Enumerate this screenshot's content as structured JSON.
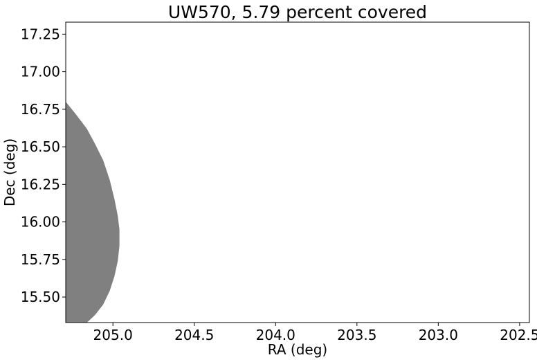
{
  "chart_data": {
    "type": "area",
    "title": "UW570, 5.79 percent covered",
    "xlabel": "RA (deg)",
    "ylabel": "Dec (deg)",
    "xlim": [
      205.29,
      202.44
    ],
    "ylim": [
      15.33,
      17.33
    ],
    "x_inverted": true,
    "grid": false,
    "xticks": [
      205.0,
      204.5,
      204.0,
      203.5,
      203.0,
      202.5
    ],
    "xtick_labels": [
      "205.0",
      "204.5",
      "204.0",
      "203.5",
      "203.0",
      "202.5"
    ],
    "yticks": [
      15.5,
      15.75,
      16.0,
      16.25,
      16.5,
      16.75,
      17.0,
      17.25
    ],
    "ytick_labels": [
      "15.50",
      "15.75",
      "16.00",
      "16.25",
      "16.50",
      "16.75",
      "17.00",
      "17.25"
    ],
    "series": [
      {
        "fill_color": "#808080",
        "x": [
          205.29,
          205.23,
          205.16,
          205.11,
          205.06,
          205.02,
          204.99,
          204.97,
          204.96,
          204.96,
          204.97,
          204.99,
          205.02,
          205.06,
          205.11,
          205.16,
          205.23,
          205.29
        ],
        "y": [
          16.8,
          16.72,
          16.62,
          16.52,
          16.41,
          16.28,
          16.15,
          16.04,
          15.95,
          15.84,
          15.74,
          15.64,
          15.54,
          15.45,
          15.38,
          15.33,
          15.33,
          15.33
        ]
      }
    ]
  }
}
